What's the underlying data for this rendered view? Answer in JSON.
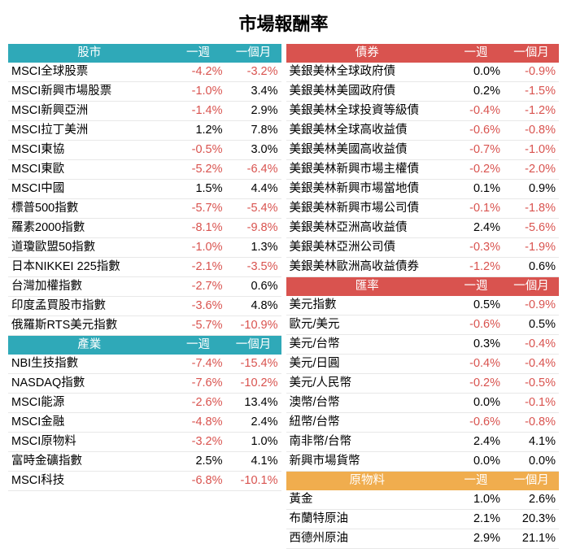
{
  "title": "市場報酬率",
  "headers": {
    "week": "一週",
    "month": "一個月"
  },
  "colors": {
    "teal": "#2fa9b8",
    "red": "#d9534f",
    "orange": "#f0ad4e",
    "neg": "#d9534f"
  },
  "sections": [
    {
      "col": "left",
      "header_class": "hd-teal",
      "label": "股市",
      "rows": [
        {
          "name": "MSCI全球股票",
          "week": "-4.2%",
          "month": "-3.2%"
        },
        {
          "name": "MSCI新興市場股票",
          "week": "-1.0%",
          "month": "3.4%"
        },
        {
          "name": "MSCI新興亞洲",
          "week": "-1.4%",
          "month": "2.9%"
        },
        {
          "name": "MSCI拉丁美洲",
          "week": "1.2%",
          "month": "7.8%"
        },
        {
          "name": "MSCI東協",
          "week": "-0.5%",
          "month": "3.0%"
        },
        {
          "name": "MSCI東歐",
          "week": "-5.2%",
          "month": "-6.4%"
        },
        {
          "name": "MSCI中國",
          "week": "1.5%",
          "month": "4.4%"
        },
        {
          "name": "標普500指數",
          "week": "-5.7%",
          "month": "-5.4%"
        },
        {
          "name": "羅素2000指數",
          "week": "-8.1%",
          "month": "-9.8%"
        },
        {
          "name": "道瓊歐盟50指數",
          "week": "-1.0%",
          "month": "1.3%"
        },
        {
          "name": "日本NIKKEI 225指數",
          "week": "-2.1%",
          "month": "-3.5%"
        },
        {
          "name": "台灣加權指數",
          "week": "-2.7%",
          "month": "0.6%"
        },
        {
          "name": "印度孟買股市指數",
          "week": "-3.6%",
          "month": "4.8%"
        },
        {
          "name": "俄羅斯RTS美元指數",
          "week": "-5.7%",
          "month": "-10.9%"
        }
      ]
    },
    {
      "col": "left",
      "header_class": "hd-teal",
      "label": "產業",
      "rows": [
        {
          "name": "NBI生技指數",
          "week": "-7.4%",
          "month": "-15.4%"
        },
        {
          "name": "NASDAQ指數",
          "week": "-7.6%",
          "month": "-10.2%"
        },
        {
          "name": "MSCI能源",
          "week": "-2.6%",
          "month": "13.4%"
        },
        {
          "name": "MSCI金融",
          "week": "-4.8%",
          "month": "2.4%"
        },
        {
          "name": "MSCI原物料",
          "week": "-3.2%",
          "month": "1.0%"
        },
        {
          "name": "富時金礦指數",
          "week": "2.5%",
          "month": "4.1%"
        },
        {
          "name": "MSCI科技",
          "week": "-6.8%",
          "month": "-10.1%"
        }
      ]
    },
    {
      "col": "right",
      "header_class": "hd-red",
      "label": "債券",
      "rows": [
        {
          "name": "美銀美林全球政府債",
          "week": "0.0%",
          "month": "-0.9%"
        },
        {
          "name": "美銀美林美國政府債",
          "week": "0.2%",
          "month": "-1.5%"
        },
        {
          "name": "美銀美林全球投資等級債",
          "week": "-0.4%",
          "month": "-1.2%"
        },
        {
          "name": "美銀美林全球高收益債",
          "week": "-0.6%",
          "month": "-0.8%"
        },
        {
          "name": "美銀美林美國高收益債",
          "week": "-0.7%",
          "month": "-1.0%"
        },
        {
          "name": "美銀美林新興市場主權債",
          "week": "-0.2%",
          "month": "-2.0%"
        },
        {
          "name": "美銀美林新興市場當地債",
          "week": "0.1%",
          "month": "0.9%"
        },
        {
          "name": "美銀美林新興市場公司債",
          "week": "-0.1%",
          "month": "-1.8%"
        },
        {
          "name": "美銀美林亞洲高收益債",
          "week": "2.4%",
          "month": "-5.6%"
        },
        {
          "name": "美銀美林亞洲公司債",
          "week": "-0.3%",
          "month": "-1.9%"
        },
        {
          "name": "美銀美林歐洲高收益債券",
          "week": "-1.2%",
          "month": "0.6%"
        }
      ]
    },
    {
      "col": "right",
      "header_class": "hd-red",
      "label": "匯率",
      "rows": [
        {
          "name": "美元指數",
          "week": "0.5%",
          "month": "-0.9%"
        },
        {
          "name": "歐元/美元",
          "week": "-0.6%",
          "month": "0.5%"
        },
        {
          "name": "美元/台幣",
          "week": "0.3%",
          "month": "-0.4%"
        },
        {
          "name": "美元/日圓",
          "week": "-0.4%",
          "month": "-0.4%"
        },
        {
          "name": "美元/人民幣",
          "week": "-0.2%",
          "month": "-0.5%"
        },
        {
          "name": "澳幣/台幣",
          "week": "0.0%",
          "month": "-0.1%"
        },
        {
          "name": "紐幣/台幣",
          "week": "-0.6%",
          "month": "-0.8%"
        },
        {
          "name": "南非幣/台幣",
          "week": "2.4%",
          "month": "4.1%"
        },
        {
          "name": "新興市場貨幣",
          "week": "0.0%",
          "month": "0.0%"
        }
      ]
    },
    {
      "col": "right",
      "header_class": "hd-orange",
      "label": "原物料",
      "rows": [
        {
          "name": "黃金",
          "week": "1.0%",
          "month": "2.6%"
        },
        {
          "name": "布蘭特原油",
          "week": "2.1%",
          "month": "20.3%"
        },
        {
          "name": "西德州原油",
          "week": "2.9%",
          "month": "21.1%"
        }
      ]
    }
  ]
}
